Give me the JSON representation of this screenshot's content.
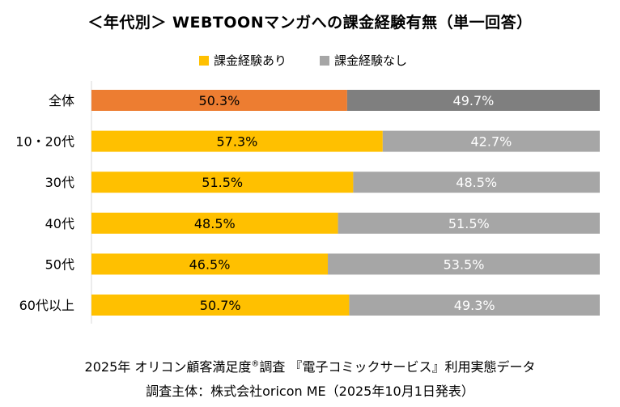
{
  "title": "＜年代別＞ WEBTOONマンガへの課金経験有無（単一回答）",
  "legend": {
    "paid": "課金経験あり",
    "unpaid": "課金経験なし"
  },
  "colors": {
    "paid": "#FFC000",
    "unpaid": "#A6A6A6",
    "total_paid": "#ED7D31",
    "total_unpaid": "#7F7F7F",
    "axis": "#D9D9D9"
  },
  "chart_data": {
    "type": "bar",
    "orientation": "horizontal",
    "stacked": true,
    "title": "＜年代別＞ WEBTOONマンガへの課金経験有無（単一回答）",
    "categories": [
      "全体",
      "10・20代",
      "30代",
      "40代",
      "50代",
      "60代以上"
    ],
    "series": [
      {
        "name": "課金経験あり",
        "values": [
          50.3,
          57.3,
          51.5,
          48.5,
          46.5,
          50.7
        ],
        "labels": [
          "50.3%",
          "57.3%",
          "51.5%",
          "48.5%",
          "46.5%",
          "50.7%"
        ]
      },
      {
        "name": "課金経験なし",
        "values": [
          49.7,
          42.7,
          48.5,
          51.5,
          53.5,
          49.3
        ],
        "labels": [
          "49.7%",
          "42.7%",
          "48.5%",
          "51.5%",
          "53.5%",
          "49.3%"
        ]
      }
    ],
    "xlim": [
      0,
      100
    ],
    "xlabel": "",
    "ylabel": "",
    "legend_position": "top"
  },
  "footer": {
    "line1_pre": "2025年 オリコン顧客満足度",
    "line1_sup": "®",
    "line1_post": "調査 『電子コミックサービス』利用実態データ",
    "line2": "調査主体：株式会社oricon ME（2025年10月1日発表）"
  }
}
